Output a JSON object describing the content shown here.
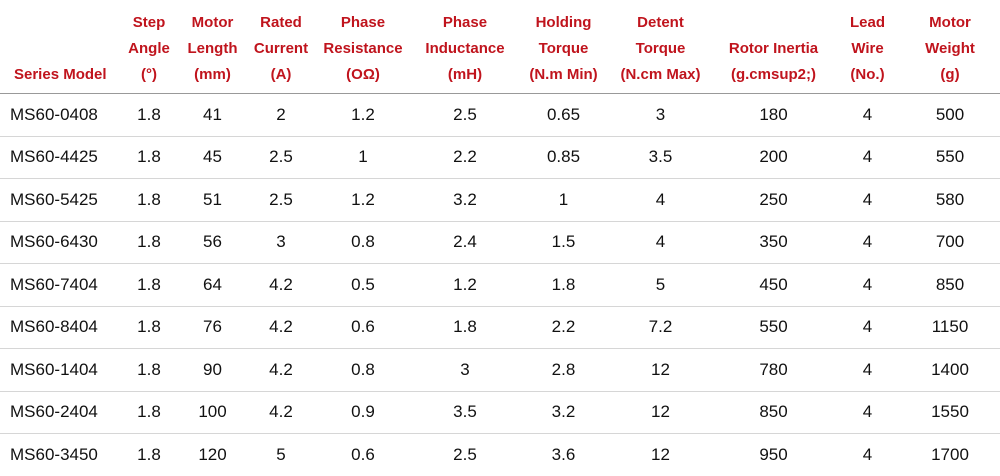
{
  "columns": [
    {
      "lines": [
        "Series Model"
      ]
    },
    {
      "lines": [
        "Step",
        "Angle",
        "(°)"
      ]
    },
    {
      "lines": [
        "Motor",
        "Length",
        "(mm)"
      ]
    },
    {
      "lines": [
        "Rated",
        "Current",
        "(A)"
      ]
    },
    {
      "lines": [
        "Phase",
        "Resistance",
        "(OΩ)"
      ]
    },
    {
      "lines": [
        "Phase",
        "Inductance",
        "(mH)"
      ]
    },
    {
      "lines": [
        "Holding",
        "Torque",
        "(N.m Min)"
      ]
    },
    {
      "lines": [
        "Detent",
        "Torque",
        "(N.cm Max)"
      ]
    },
    {
      "lines": [
        "Rotor Inertia",
        "(g.cmsup2;)"
      ]
    },
    {
      "lines": [
        "Lead",
        "Wire",
        "(No.)"
      ]
    },
    {
      "lines": [
        "Motor",
        "Weight",
        "(g)"
      ]
    }
  ],
  "rows": [
    [
      "MS60-0408",
      "1.8",
      "41",
      "2",
      "1.2",
      "2.5",
      "0.65",
      "3",
      "180",
      "4",
      "500"
    ],
    [
      "MS60-4425",
      "1.8",
      "45",
      "2.5",
      "1",
      "2.2",
      "0.85",
      "3.5",
      "200",
      "4",
      "550"
    ],
    [
      "MS60-5425",
      "1.8",
      "51",
      "2.5",
      "1.2",
      "3.2",
      "1",
      "4",
      "250",
      "4",
      "580"
    ],
    [
      "MS60-6430",
      "1.8",
      "56",
      "3",
      "0.8",
      "2.4",
      "1.5",
      "4",
      "350",
      "4",
      "700"
    ],
    [
      "MS60-7404",
      "1.8",
      "64",
      "4.2",
      "0.5",
      "1.2",
      "1.8",
      "5",
      "450",
      "4",
      "850"
    ],
    [
      "MS60-8404",
      "1.8",
      "76",
      "4.2",
      "0.6",
      "1.8",
      "2.2",
      "7.2",
      "550",
      "4",
      "1150"
    ],
    [
      "MS60-1404",
      "1.8",
      "90",
      "4.2",
      "0.8",
      "3",
      "2.8",
      "12",
      "780",
      "4",
      "1400"
    ],
    [
      "MS60-2404",
      "1.8",
      "100",
      "4.2",
      "0.9",
      "3.5",
      "3.2",
      "12",
      "850",
      "4",
      "1550"
    ],
    [
      "MS60-3450",
      "1.8",
      "120",
      "5",
      "0.6",
      "2.5",
      "3.6",
      "12",
      "950",
      "4",
      "1700"
    ]
  ],
  "colors": {
    "header_text": "#c0141d",
    "body_text": "#111111",
    "row_border": "#d6d6d6"
  }
}
